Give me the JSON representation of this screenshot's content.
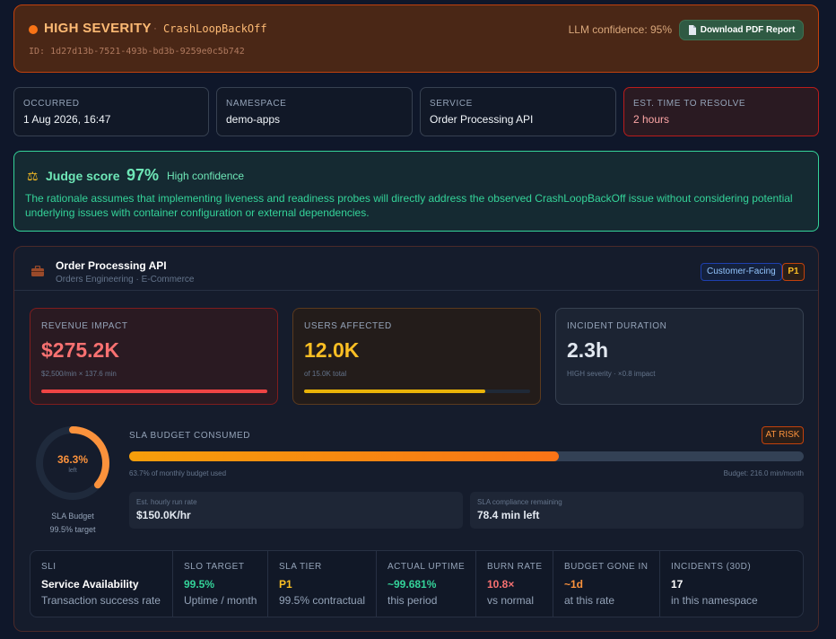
{
  "header": {
    "severity": "HIGH SEVERITY",
    "separator": "·",
    "error_code": "CrashLoopBackOff",
    "incident_id": "ID: 1d27d13b-7521-493b-bd3b-9259e0c5b742",
    "llm_confidence": "LLM confidence: 95%",
    "download_label": "Download PDF Report",
    "download_icon": "document-icon"
  },
  "info_cards": [
    {
      "label": "OCCURRED",
      "value": "1 Aug 2026, 16:47"
    },
    {
      "label": "NAMESPACE",
      "value": "demo-apps"
    },
    {
      "label": "SERVICE",
      "value": "Order Processing API"
    },
    {
      "label": "EST. TIME TO RESOLVE",
      "value": "2 hours"
    }
  ],
  "judge": {
    "icon": "scales-icon",
    "title": "Judge score",
    "score": "97%",
    "confidence": "High confidence",
    "rationale": "The rationale assumes that implementing liveness and readiness probes will directly address the observed CrashLoopBackOff issue without considering potential underlying issues with container configuration or external dependencies."
  },
  "service": {
    "icon": "briefcase-icon",
    "name": "Order Processing API",
    "subtitle": "Orders Engineering · E-Commerce",
    "badge": "Customer-Facing",
    "priority": "P1"
  },
  "metrics": {
    "revenue": {
      "label": "REVENUE IMPACT",
      "value": "$275.2K",
      "sub": "$2,500/min × 137.6 min",
      "progress": 1.0
    },
    "users": {
      "label": "USERS AFFECTED",
      "value": "12.0K",
      "sub": "of 15.0K total",
      "progress": 0.8
    },
    "duration": {
      "label": "INCIDENT DURATION",
      "value": "2.3h",
      "sub": "HIGH severity · ×0.8 impact"
    }
  },
  "sla": {
    "remaining_pct": "36.3%",
    "remaining_fraction": 0.363,
    "left_label": "left",
    "donut_label": "SLA Budget",
    "donut_target": "99.5% target",
    "title": "SLA BUDGET CONSUMED",
    "status": "AT RISK",
    "consumed_fraction": 0.637,
    "used_text": "63.7% of monthly budget used",
    "budget_text": "Budget: 216.0 min/month",
    "run_rate_label": "Est. hourly run rate",
    "run_rate_value": "$150.0K/hr",
    "compliance_label": "SLA compliance remaining",
    "compliance_value": "78.4 min left"
  },
  "sli_row": [
    {
      "label": "SLI",
      "value": "Service Availability",
      "sub": "Transaction success rate"
    },
    {
      "label": "SLO TARGET",
      "value": "99.5%",
      "sub": "Uptime / month"
    },
    {
      "label": "SLA TIER",
      "value": "P1",
      "sub": "99.5% contractual"
    },
    {
      "label": "ACTUAL UPTIME",
      "value": "~99.681%",
      "sub": "this period"
    },
    {
      "label": "BURN RATE",
      "value": "10.8×",
      "sub": "vs normal"
    },
    {
      "label": "BUDGET GONE IN",
      "value": "~1d",
      "sub": "at this rate"
    },
    {
      "label": "INCIDENTS (30D)",
      "value": "17",
      "sub": "in this namespace"
    }
  ],
  "colors": {
    "high_severity": "#f97316",
    "judge_green": "#34d399",
    "revenue_red": "#ef4444",
    "users_yellow": "#eab308"
  }
}
